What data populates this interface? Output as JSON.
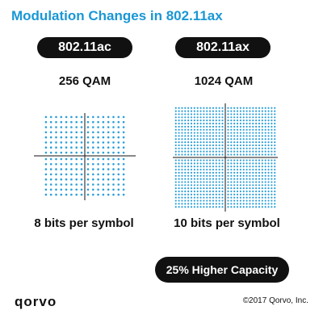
{
  "title": "Modulation Changes in 802.11ax",
  "left": {
    "standard": "802.11ac",
    "modulation": "256 QAM",
    "bits": "8 bits per symbol",
    "points_per_side": 16
  },
  "right": {
    "standard": "802.11ax",
    "modulation": "1024 QAM",
    "bits": "10 bits per symbol",
    "points_per_side": 32
  },
  "capacity_badge": "25% Higher Capacity",
  "logo": "qorvo",
  "copyright": "©2017 Qorvo, Inc.",
  "colors": {
    "title": "#1a97d5",
    "dot": "#2b9fd8",
    "pill": "#111111",
    "axis": "#111111"
  }
}
